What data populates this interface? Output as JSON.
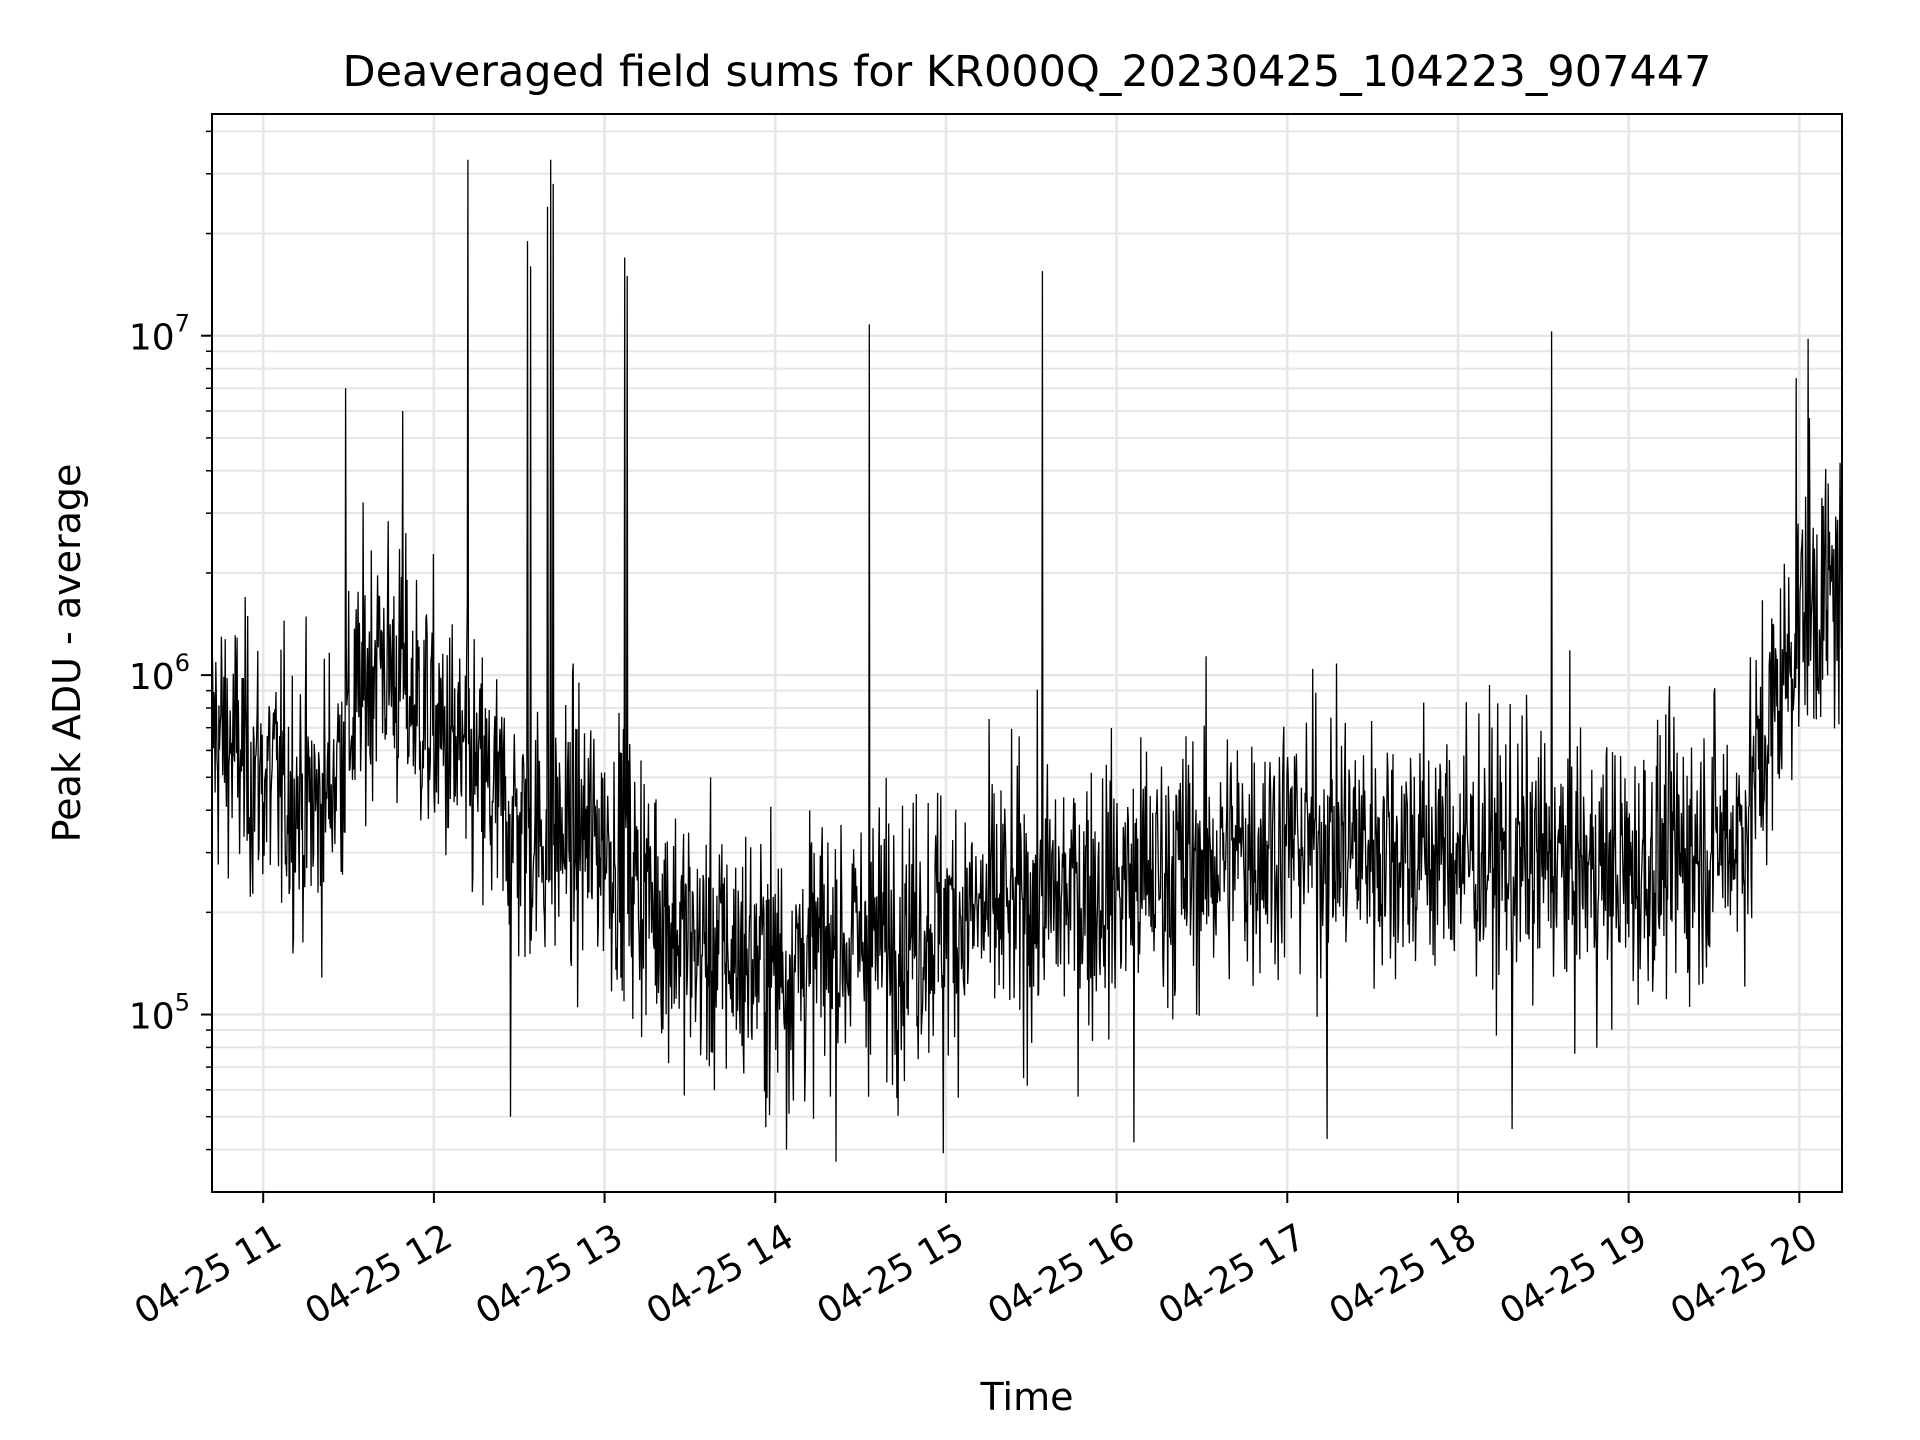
{
  "chart_data": {
    "type": "line",
    "title": "Deaveraged field sums for KR000Q_20230425_104223_907447",
    "xlabel": "Time",
    "ylabel": "Peak ADU - average",
    "yscale": "log",
    "ylim": [
      30000,
      45000000
    ],
    "xlim": [
      "2023-04-25 10:42",
      "2023-04-25 20:15"
    ],
    "grid": true,
    "line_color": "#000000",
    "grid_color": "#e6e6e6",
    "x_ticks": [
      {
        "t": "2023-04-25 11:00",
        "label": "04-25 11"
      },
      {
        "t": "2023-04-25 12:00",
        "label": "04-25 12"
      },
      {
        "t": "2023-04-25 13:00",
        "label": "04-25 13"
      },
      {
        "t": "2023-04-25 14:00",
        "label": "04-25 14"
      },
      {
        "t": "2023-04-25 15:00",
        "label": "04-25 15"
      },
      {
        "t": "2023-04-25 16:00",
        "label": "04-25 16"
      },
      {
        "t": "2023-04-25 17:00",
        "label": "04-25 17"
      },
      {
        "t": "2023-04-25 18:00",
        "label": "04-25 18"
      },
      {
        "t": "2023-04-25 19:00",
        "label": "04-25 19"
      },
      {
        "t": "2023-04-25 20:00",
        "label": "04-25 20"
      }
    ],
    "y_ticks": [
      {
        "value": 100000,
        "base": "10",
        "exp": "5"
      },
      {
        "value": 1000000,
        "base": "10",
        "exp": "6"
      },
      {
        "value": 10000000,
        "base": "10",
        "exp": "7"
      }
    ],
    "baseline_trend": [
      {
        "t": "2023-04-25 10:42",
        "value": 700000
      },
      {
        "t": "2023-04-25 11:00",
        "value": 500000
      },
      {
        "t": "2023-04-25 11:20",
        "value": 400000
      },
      {
        "t": "2023-04-25 11:40",
        "value": 1200000
      },
      {
        "t": "2023-04-25 12:00",
        "value": 700000
      },
      {
        "t": "2023-04-25 12:30",
        "value": 350000
      },
      {
        "t": "2023-04-25 13:00",
        "value": 330000
      },
      {
        "t": "2023-04-25 13:30",
        "value": 160000
      },
      {
        "t": "2023-04-25 14:00",
        "value": 140000
      },
      {
        "t": "2023-04-25 15:00",
        "value": 190000
      },
      {
        "t": "2023-04-25 16:00",
        "value": 240000
      },
      {
        "t": "2023-04-25 17:00",
        "value": 330000
      },
      {
        "t": "2023-04-25 18:00",
        "value": 300000
      },
      {
        "t": "2023-04-25 19:00",
        "value": 260000
      },
      {
        "t": "2023-04-25 19:40",
        "value": 350000
      },
      {
        "t": "2023-04-25 20:00",
        "value": 1500000
      },
      {
        "t": "2023-04-25 20:15",
        "value": 1800000
      }
    ],
    "spikes": [
      {
        "t": "2023-04-25 12:12",
        "value": 33000000
      },
      {
        "t": "2023-04-25 12:33",
        "value": 19000000
      },
      {
        "t": "2023-04-25 12:34",
        "value": 16000000
      },
      {
        "t": "2023-04-25 12:40",
        "value": 24000000
      },
      {
        "t": "2023-04-25 12:41",
        "value": 33000000
      },
      {
        "t": "2023-04-25 12:42",
        "value": 28000000
      },
      {
        "t": "2023-04-25 13:07",
        "value": 17000000
      },
      {
        "t": "2023-04-25 13:08",
        "value": 15000000
      },
      {
        "t": "2023-04-25 14:33",
        "value": 10800000
      },
      {
        "t": "2023-04-25 15:34",
        "value": 15500000
      },
      {
        "t": "2023-04-25 18:33",
        "value": 10300000
      },
      {
        "t": "2023-04-25 20:03",
        "value": 9800000
      },
      {
        "t": "2023-04-25 11:29",
        "value": 7000000
      },
      {
        "t": "2023-04-25 11:49",
        "value": 6000000
      },
      {
        "t": "2023-04-25 19:59",
        "value": 7500000
      }
    ],
    "dips": [
      {
        "t": "2023-04-25 12:27",
        "value": 50000
      },
      {
        "t": "2023-04-25 14:04",
        "value": 40000
      },
      {
        "t": "2023-04-25 14:59",
        "value": 39000
      },
      {
        "t": "2023-04-25 16:06",
        "value": 42000
      },
      {
        "t": "2023-04-25 17:14",
        "value": 43000
      },
      {
        "t": "2023-04-25 18:19",
        "value": 46000
      }
    ]
  }
}
